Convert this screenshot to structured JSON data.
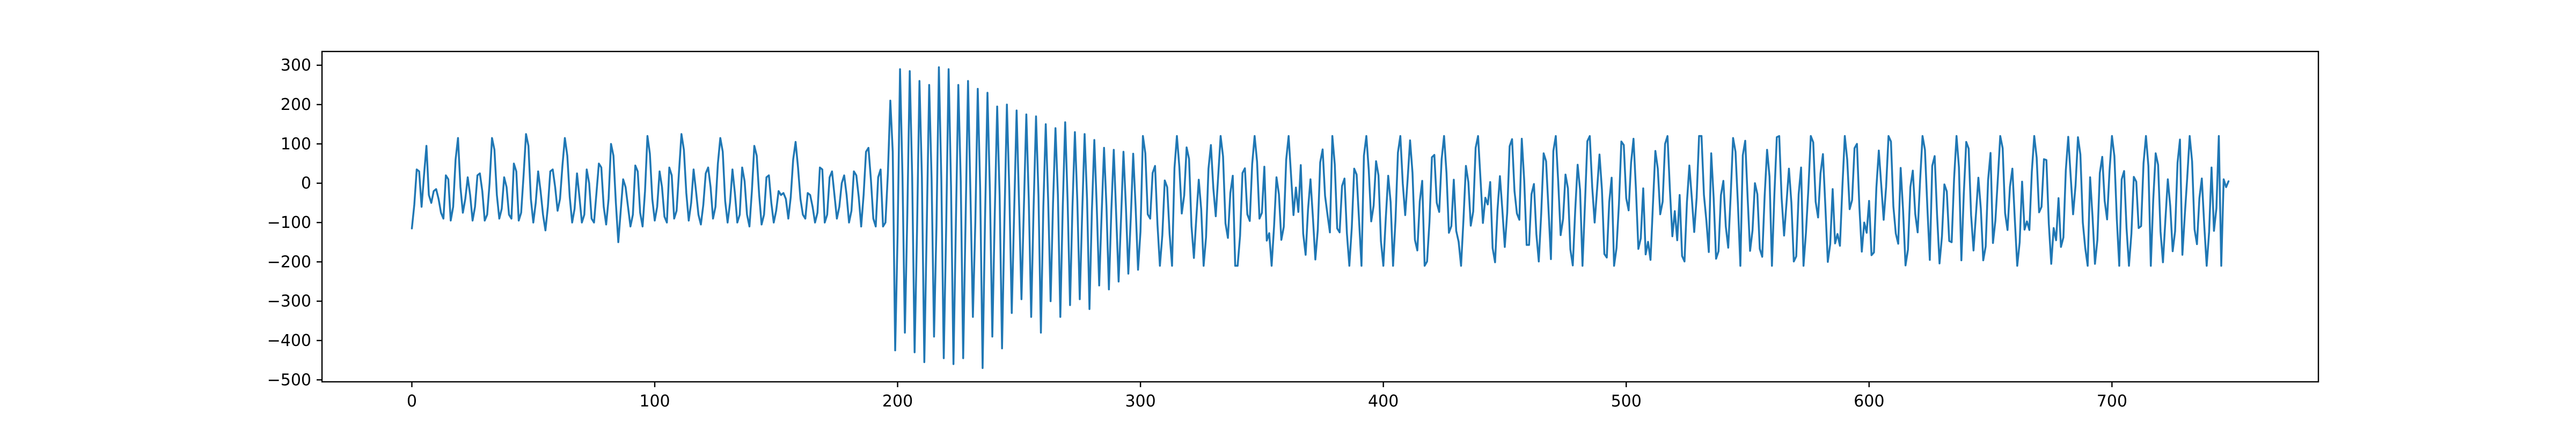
{
  "chart_data": {
    "type": "line",
    "title": "",
    "xlabel": "",
    "ylabel": "",
    "grid": false,
    "xlim": [
      -37,
      785
    ],
    "ylim": [
      -505,
      335
    ],
    "x_ticks": [
      0,
      100,
      200,
      300,
      400,
      500,
      600,
      700
    ],
    "y_ticks": [
      -500,
      -400,
      -300,
      -200,
      -100,
      0,
      100,
      200,
      300
    ],
    "series": [
      {
        "color": "#1f77b4",
        "x_start": 0,
        "x_step": 1,
        "y": [
          -115,
          -55,
          35,
          30,
          -60,
          20,
          95,
          -30,
          -50,
          -20,
          -15,
          -40,
          -75,
          -90,
          20,
          10,
          -95,
          -60,
          60,
          115,
          -10,
          -75,
          -40,
          15,
          -30,
          -95,
          -60,
          20,
          25,
          -20,
          -95,
          -80,
          0,
          115,
          85,
          -30,
          -90,
          -65,
          15,
          -10,
          -80,
          -90,
          50,
          30,
          -95,
          -75,
          20,
          125,
          95,
          -40,
          -100,
          -50,
          30,
          -20,
          -80,
          -120,
          -60,
          30,
          35,
          -10,
          -70,
          -40,
          45,
          115,
          70,
          -35,
          -100,
          -65,
          25,
          -35,
          -100,
          -80,
          35,
          0,
          -90,
          -100,
          -25,
          50,
          40,
          -60,
          -105,
          -40,
          100,
          70,
          -50,
          -150,
          -70,
          10,
          -10,
          -60,
          -110,
          -80,
          45,
          30,
          -75,
          -110,
          -20,
          120,
          75,
          -40,
          -95,
          -60,
          30,
          -10,
          -85,
          -100,
          40,
          20,
          -90,
          -70,
          30,
          125,
          85,
          -25,
          -95,
          -50,
          35,
          -20,
          -80,
          -105,
          -55,
          25,
          40,
          -10,
          -90,
          -60,
          50,
          115,
          80,
          -45,
          -100,
          -50,
          35,
          -25,
          -100,
          -80,
          40,
          5,
          -80,
          -110,
          -20,
          95,
          70,
          -30,
          -105,
          -80,
          15,
          20,
          -50,
          -100,
          -70,
          -20,
          -30,
          -25,
          -40,
          -90,
          -35,
          60,
          105,
          40,
          -40,
          -80,
          -90,
          -25,
          -30,
          -60,
          -100,
          -75,
          40,
          35,
          -100,
          -80,
          15,
          30,
          -30,
          -90,
          -60,
          0,
          20,
          -30,
          -100,
          -70,
          30,
          20,
          -35,
          -110,
          -30,
          80,
          90,
          10,
          -90,
          -110,
          15,
          35,
          -110,
          -100,
          25,
          210,
          80,
          -425,
          -130,
          290,
          20,
          -380,
          -80,
          285,
          15,
          -430,
          -120,
          260,
          15,
          -455,
          -110,
          250,
          10,
          -390,
          -110,
          295,
          10,
          -445,
          -110,
          290,
          -10,
          -460,
          -100,
          250,
          5,
          -445,
          -90,
          260,
          -30,
          -340,
          -100,
          240,
          -15,
          -470,
          -90,
          230,
          -20,
          -390,
          -80,
          195,
          -30,
          -420,
          -90,
          200,
          -20,
          -330,
          -70,
          185,
          -50,
          -295,
          -60,
          175,
          -40,
          -340,
          -60,
          170,
          -30,
          -380,
          -60,
          150,
          -45,
          -300,
          -50,
          140,
          -30,
          -340,
          -60,
          155,
          -45,
          -310,
          -60,
          130,
          -45,
          -295,
          -75,
          125,
          -40,
          -320,
          -70,
          110,
          -60,
          -260,
          -80,
          90,
          -60,
          -270,
          -70,
          85,
          -80,
          -250,
          -90,
          80,
          -60,
          -230,
          -90,
          75,
          -60,
          -220
        ]
      }
    ]
  }
}
